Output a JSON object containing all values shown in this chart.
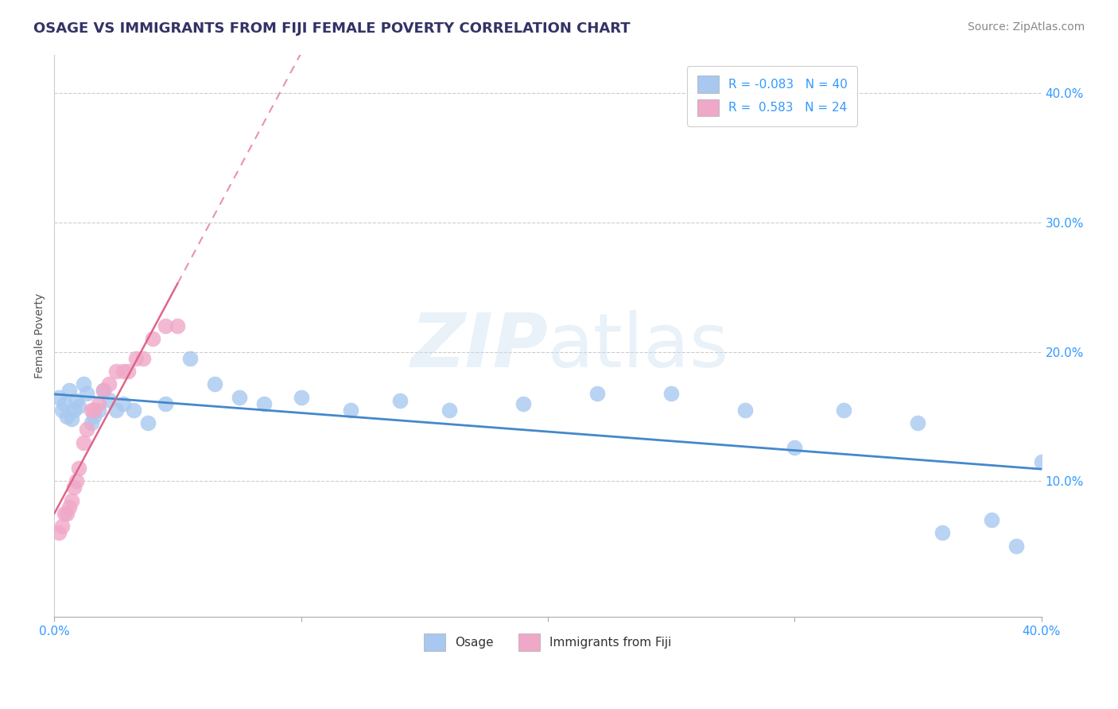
{
  "title": "OSAGE VS IMMIGRANTS FROM FIJI FEMALE POVERTY CORRELATION CHART",
  "source": "Source: ZipAtlas.com",
  "ylabel": "Female Poverty",
  "watermark": "ZIPatlas",
  "legend_labels": [
    "Osage",
    "Immigrants from Fiji"
  ],
  "osage_R": -0.083,
  "osage_N": 40,
  "fiji_R": 0.583,
  "fiji_N": 24,
  "osage_color": "#a8c8f0",
  "fiji_color": "#f0a8c8",
  "osage_line_color": "#4488cc",
  "fiji_line_color": "#dd6688",
  "background_color": "#ffffff",
  "grid_color": "#cccccc",
  "xlim": [
    0.0,
    0.4
  ],
  "ylim": [
    -0.005,
    0.43
  ],
  "yticks": [
    0.1,
    0.2,
    0.3,
    0.4
  ],
  "ytick_labels": [
    "10.0%",
    "20.0%",
    "30.0%",
    "40.0%"
  ],
  "osage_x": [
    0.002,
    0.003,
    0.004,
    0.005,
    0.006,
    0.007,
    0.008,
    0.009,
    0.01,
    0.012,
    0.013,
    0.015,
    0.016,
    0.018,
    0.02,
    0.022,
    0.025,
    0.028,
    0.032,
    0.038,
    0.045,
    0.055,
    0.065,
    0.075,
    0.085,
    0.1,
    0.12,
    0.14,
    0.16,
    0.19,
    0.22,
    0.25,
    0.28,
    0.3,
    0.32,
    0.35,
    0.36,
    0.38,
    0.39,
    0.4
  ],
  "osage_y": [
    0.165,
    0.155,
    0.16,
    0.15,
    0.17,
    0.148,
    0.155,
    0.162,
    0.158,
    0.175,
    0.168,
    0.145,
    0.15,
    0.155,
    0.17,
    0.163,
    0.155,
    0.16,
    0.155,
    0.145,
    0.16,
    0.195,
    0.175,
    0.165,
    0.16,
    0.165,
    0.155,
    0.162,
    0.155,
    0.16,
    0.168,
    0.168,
    0.155,
    0.126,
    0.155,
    0.145,
    0.06,
    0.07,
    0.05,
    0.115
  ],
  "fiji_x": [
    0.002,
    0.003,
    0.004,
    0.005,
    0.006,
    0.007,
    0.008,
    0.009,
    0.01,
    0.012,
    0.013,
    0.015,
    0.016,
    0.018,
    0.02,
    0.022,
    0.025,
    0.028,
    0.03,
    0.033,
    0.036,
    0.04,
    0.045,
    0.05
  ],
  "fiji_y": [
    0.06,
    0.065,
    0.075,
    0.075,
    0.08,
    0.085,
    0.095,
    0.1,
    0.11,
    0.13,
    0.14,
    0.155,
    0.155,
    0.16,
    0.17,
    0.175,
    0.185,
    0.185,
    0.185,
    0.195,
    0.195,
    0.21,
    0.22,
    0.22
  ],
  "title_fontsize": 13,
  "axis_label_fontsize": 10,
  "tick_fontsize": 11,
  "legend_fontsize": 11,
  "source_fontsize": 10
}
